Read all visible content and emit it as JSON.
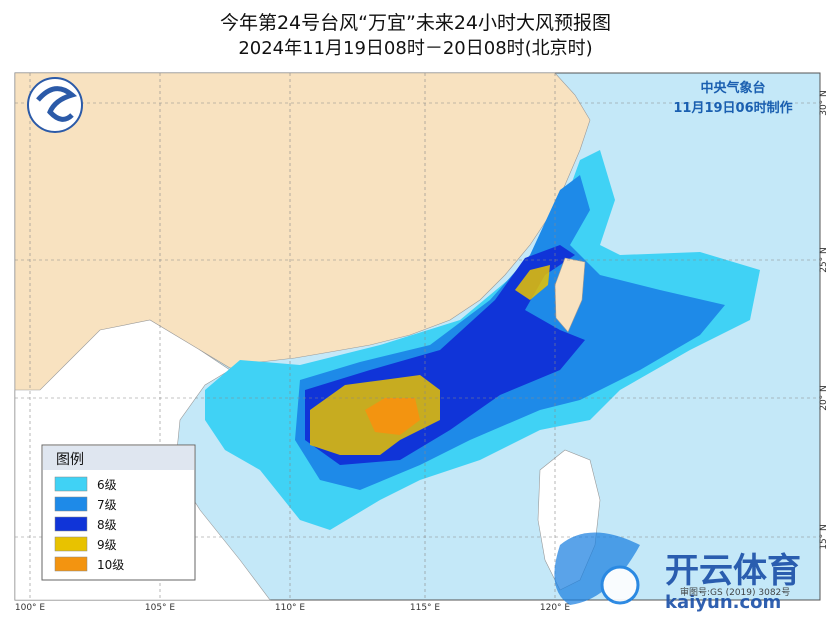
{
  "header": {
    "title": "今年第24号台风“万宜”未来24小时大风预报图",
    "subtitle": "2024年11月19日08时－20日08时(北京时)"
  },
  "agency": {
    "name": "中央气象台",
    "issued": "11月19日06时制作"
  },
  "legend": {
    "title": "图例",
    "items": [
      {
        "label": "6级",
        "color": "#40d2f5"
      },
      {
        "label": "7级",
        "color": "#1e8ae8"
      },
      {
        "label": "8级",
        "color": "#1034d8"
      },
      {
        "label": "9级",
        "color": "#e8c200"
      },
      {
        "label": "10级",
        "color": "#f39410"
      }
    ]
  },
  "longitude_labels": [
    "100° E",
    "105° E",
    "110° E",
    "115° E",
    "120° E"
  ],
  "latitude_labels": [
    "30° N",
    "25° N",
    "20° N",
    "15° N"
  ],
  "watermark": {
    "brand": "开云体育",
    "site": "kaiyun.com",
    "map_no": "审图号:GS (2019) 3082号"
  }
}
